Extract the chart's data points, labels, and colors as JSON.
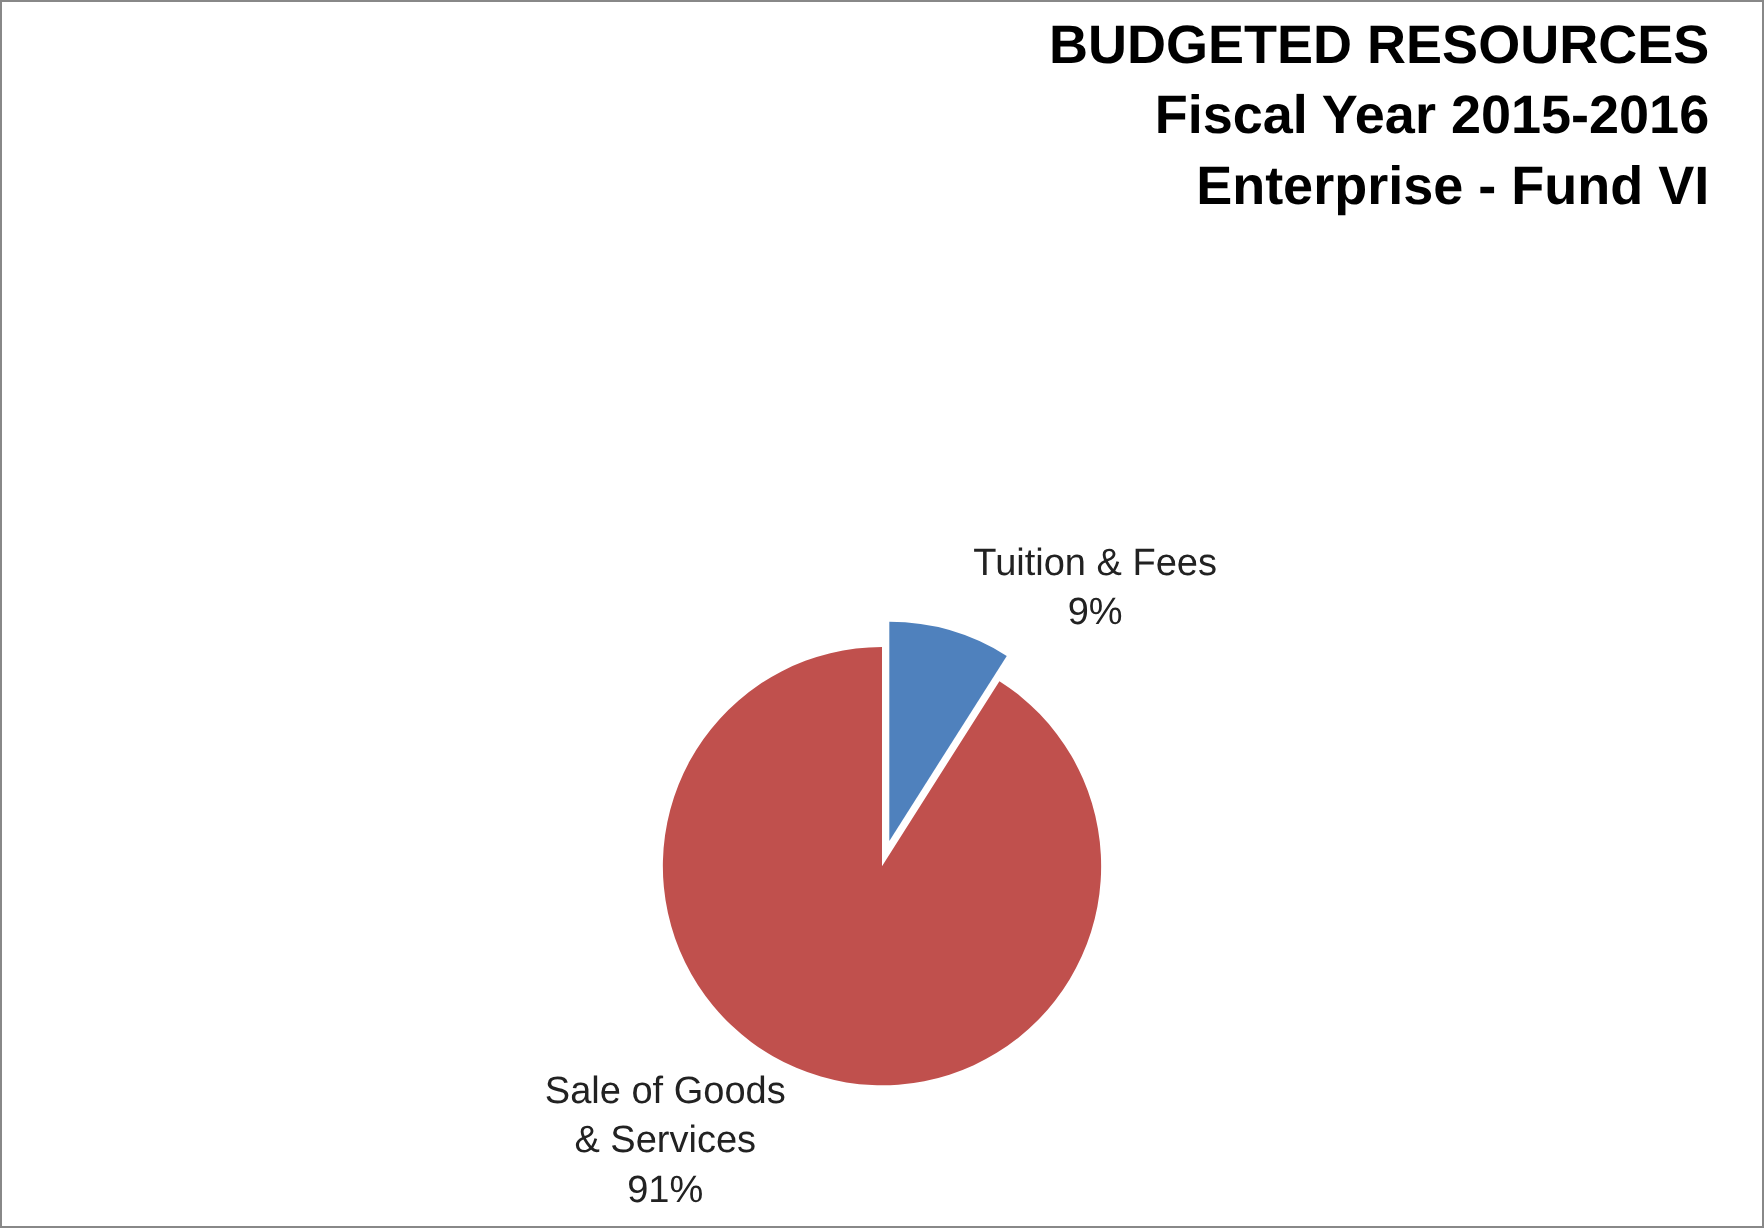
{
  "chart_data": {
    "type": "pie",
    "title": "BUDGETED RESOURCES\nFiscal Year 2015-2016\nEnterprise - Fund VI",
    "categories": [
      "Tuition & Fees",
      "Sale of Goods & Services"
    ],
    "values": [
      9,
      91
    ],
    "value_labels": [
      "9%",
      "91%"
    ],
    "colors": [
      "#4f81bd",
      "#c0504d"
    ],
    "legend": false
  }
}
